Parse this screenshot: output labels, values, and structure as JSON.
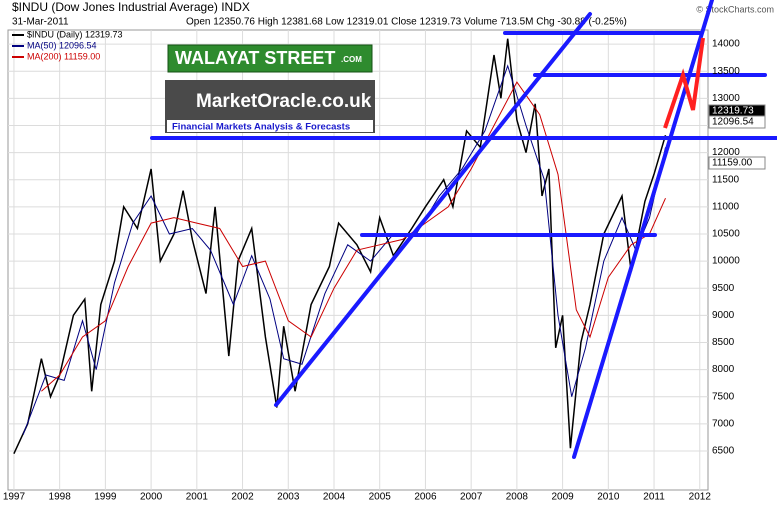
{
  "chart_data": {
    "type": "line",
    "title": "$INDU (Dow Jones Industrial Average) INDX",
    "date": "31-Mar-2011",
    "quote": "Open 12350.76  High 12381.68  Low 12319.01  Close 12319.73  Volume 713.5M  Chg -30.88 (-0.25%)",
    "credit": "© StockCharts.com",
    "logo_top": "WALAYAT STREET",
    "logo_top_suffix": ".COM",
    "logo_main": "MarketOracle.co.uk",
    "logo_sub": "Financial Markets Analysis & Forecasts",
    "xlim": [
      1996.87,
      2012.18
    ],
    "xticks": [
      1997,
      1998,
      1999,
      2000,
      2001,
      2002,
      2003,
      2004,
      2005,
      2006,
      2007,
      2008,
      2009,
      2010,
      2011,
      2012
    ],
    "ylim": [
      5780,
      14260
    ],
    "yticks": [
      6500,
      7000,
      7500,
      8000,
      8500,
      9000,
      9500,
      10000,
      10500,
      11000,
      11500,
      12000,
      12500,
      13000,
      13500,
      14000
    ],
    "grid": true,
    "series": [
      {
        "name": "$INDU (Daily) 12319.73",
        "color": "#000000",
        "label": "12319.73",
        "x": [
          1997.0,
          1997.3,
          1997.6,
          1997.8,
          1998.0,
          1998.3,
          1998.55,
          1998.7,
          1998.9,
          1999.2,
          1999.4,
          1999.7,
          2000.0,
          2000.2,
          2000.5,
          2000.7,
          2000.9,
          2001.2,
          2001.4,
          2001.7,
          2001.9,
          2002.2,
          2002.5,
          2002.75,
          2002.9,
          2003.15,
          2003.5,
          2003.9,
          2004.1,
          2004.5,
          2004.8,
          2005.0,
          2005.3,
          2005.7,
          2006.0,
          2006.4,
          2006.6,
          2006.9,
          2007.2,
          2007.5,
          2007.65,
          2007.8,
          2008.0,
          2008.2,
          2008.4,
          2008.55,
          2008.7,
          2008.85,
          2009.0,
          2009.17,
          2009.4,
          2009.6,
          2009.9,
          2010.3,
          2010.5,
          2010.8,
          2011.0,
          2011.25
        ],
        "values": [
          6450,
          7000,
          8200,
          7500,
          7900,
          9000,
          9300,
          7600,
          9200,
          10000,
          11000,
          10600,
          11700,
          10000,
          10500,
          11300,
          10400,
          9400,
          11000,
          8250,
          10000,
          10600,
          8600,
          7300,
          8800,
          7600,
          9200,
          9900,
          10700,
          10300,
          9800,
          10800,
          10100,
          10600,
          11000,
          11500,
          11000,
          12400,
          12100,
          13800,
          13000,
          14100,
          12600,
          12000,
          12900,
          11200,
          11700,
          8400,
          9000,
          6550,
          8500,
          9200,
          10500,
          11200,
          9800,
          11100,
          11600,
          12320
        ]
      },
      {
        "name": "MA(50) 12096.54",
        "color": "#000080",
        "label": "12096.54",
        "x": [
          1997.2,
          1997.7,
          1998.1,
          1998.5,
          1998.8,
          1999.2,
          1999.6,
          2000.0,
          2000.4,
          2000.9,
          2001.3,
          2001.8,
          2002.2,
          2002.6,
          2002.9,
          2003.3,
          2003.8,
          2004.3,
          2004.8,
          2005.3,
          2005.8,
          2006.3,
          2006.8,
          2007.3,
          2007.8,
          2008.2,
          2008.6,
          2008.9,
          2009.2,
          2009.5,
          2009.9,
          2010.3,
          2010.6,
          2010.9,
          2011.25
        ],
        "values": [
          6800,
          7900,
          7800,
          8900,
          8000,
          9600,
          10700,
          11200,
          10500,
          10600,
          10200,
          9200,
          10100,
          9300,
          8200,
          8100,
          9400,
          10300,
          10000,
          10500,
          10500,
          11200,
          11700,
          12400,
          13600,
          12500,
          11500,
          9000,
          7500,
          8400,
          10000,
          10800,
          10200,
          10800,
          12097
        ]
      },
      {
        "name": "MA(200) 11159.00",
        "color": "#cc0000",
        "label": "11159.00",
        "x": [
          1997.6,
          1998.0,
          1998.5,
          1999.0,
          1999.5,
          2000.0,
          2000.5,
          2001.0,
          2001.5,
          2002.0,
          2002.5,
          2003.0,
          2003.5,
          2004.0,
          2004.5,
          2005.0,
          2005.5,
          2006.0,
          2006.5,
          2007.0,
          2007.5,
          2008.0,
          2008.5,
          2008.9,
          2009.3,
          2009.6,
          2010.0,
          2010.5,
          2010.9,
          2011.25
        ],
        "values": [
          7600,
          7900,
          8600,
          8900,
          9900,
          10700,
          10800,
          10700,
          10600,
          9900,
          10000,
          8900,
          8600,
          9500,
          10200,
          10300,
          10400,
          10700,
          11000,
          11700,
          12500,
          13300,
          12700,
          11600,
          9100,
          8600,
          9700,
          10300,
          10500,
          11159
        ]
      }
    ]
  }
}
